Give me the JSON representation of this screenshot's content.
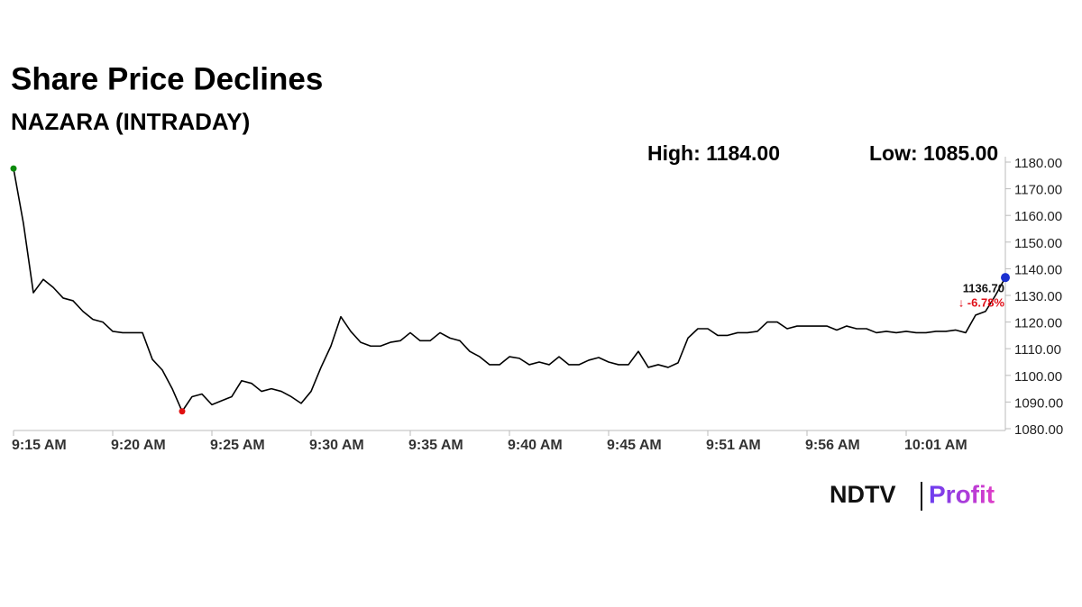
{
  "chart_data": {
    "type": "line",
    "title": "Share Price Declines",
    "subtitle": "NAZARA (INTRADAY)",
    "annotations": [
      "High: 1184.00",
      "Low: 1085.00"
    ],
    "end_label": "1136.70",
    "change_label": "↓ -6.78%",
    "change_color": "#e0101a",
    "start_color": "#0a8a0a",
    "low_color": "#e01010",
    "end_color": "#1a2fd0",
    "categories": [
      "9:15 AM",
      null,
      null,
      null,
      null,
      null,
      null,
      null,
      null,
      null,
      "9:20 AM",
      null,
      null,
      null,
      null,
      null,
      null,
      null,
      null,
      null,
      "9:25 AM",
      null,
      null,
      null,
      null,
      null,
      null,
      null,
      null,
      null,
      "9:30 AM",
      null,
      null,
      null,
      null,
      null,
      null,
      null,
      null,
      null,
      "9:35 AM",
      null,
      null,
      null,
      null,
      null,
      null,
      null,
      null,
      null,
      "9:40 AM",
      null,
      null,
      null,
      null,
      null,
      null,
      null,
      null,
      null,
      "9:45 AM",
      null,
      null,
      null,
      null,
      null,
      null,
      null,
      null,
      null,
      "9:51 AM",
      null,
      null,
      null,
      null,
      null,
      null,
      null,
      null,
      null,
      "9:56 AM",
      null,
      null,
      null,
      null,
      null,
      null,
      null,
      null,
      null,
      "10:01 AM",
      null,
      null,
      null,
      null,
      null,
      null,
      null,
      null,
      null,
      null
    ],
    "series": [
      {
        "name": "NAZARA",
        "color": "#000000",
        "values": [
          1177.6,
          1157,
          1131,
          1136,
          1133,
          1129,
          1128,
          1124,
          1121,
          1120,
          1116.5,
          1116,
          1116,
          1116,
          1106,
          1102,
          1095,
          1086.5,
          1092,
          1093,
          1089,
          1090.5,
          1092,
          1098,
          1097,
          1094,
          1095,
          1094,
          1092,
          1089.5,
          1094,
          1103,
          1111,
          1122,
          1116.5,
          1112.4,
          1111,
          1111,
          1112.4,
          1113,
          1116,
          1113,
          1113,
          1116,
          1114,
          1113,
          1109,
          1107,
          1104,
          1104,
          1107,
          1106.4,
          1104,
          1105,
          1104,
          1107,
          1104,
          1104,
          1105.7,
          1106.7,
          1105,
          1104,
          1104,
          1109,
          1103,
          1104,
          1103,
          1104.7,
          1114,
          1117.5,
          1117.5,
          1115,
          1115,
          1116,
          1116,
          1116.5,
          1120,
          1120,
          1117.5,
          1118.5,
          1118.5,
          1118.5,
          1118.5,
          1117,
          1118.5,
          1117.5,
          1117.5,
          1116,
          1116.5,
          1116,
          1116.5,
          1116,
          1116,
          1116.5,
          1116.5,
          1117,
          1116,
          1122.6,
          1124,
          1130,
          1136.7
        ]
      }
    ],
    "ylim": [
      1080,
      1180
    ],
    "yticks": [
      {
        "value": 1080,
        "label": "1080.00"
      },
      {
        "value": 1090,
        "label": "1090.00"
      },
      {
        "value": 1100,
        "label": "1100.00"
      },
      {
        "value": 1110,
        "label": "1110.00"
      },
      {
        "value": 1120,
        "label": "1120.00"
      },
      {
        "value": 1130,
        "label": "1130.00"
      },
      {
        "value": 1140,
        "label": "1140.00"
      },
      {
        "value": 1150,
        "label": "1150.00"
      },
      {
        "value": 1160,
        "label": "1160.00"
      },
      {
        "value": 1170,
        "label": "1170.00"
      },
      {
        "value": 1180,
        "label": "1180.00"
      }
    ],
    "grid": false
  },
  "logo": {
    "left": "NDTV",
    "right": "Profit"
  }
}
